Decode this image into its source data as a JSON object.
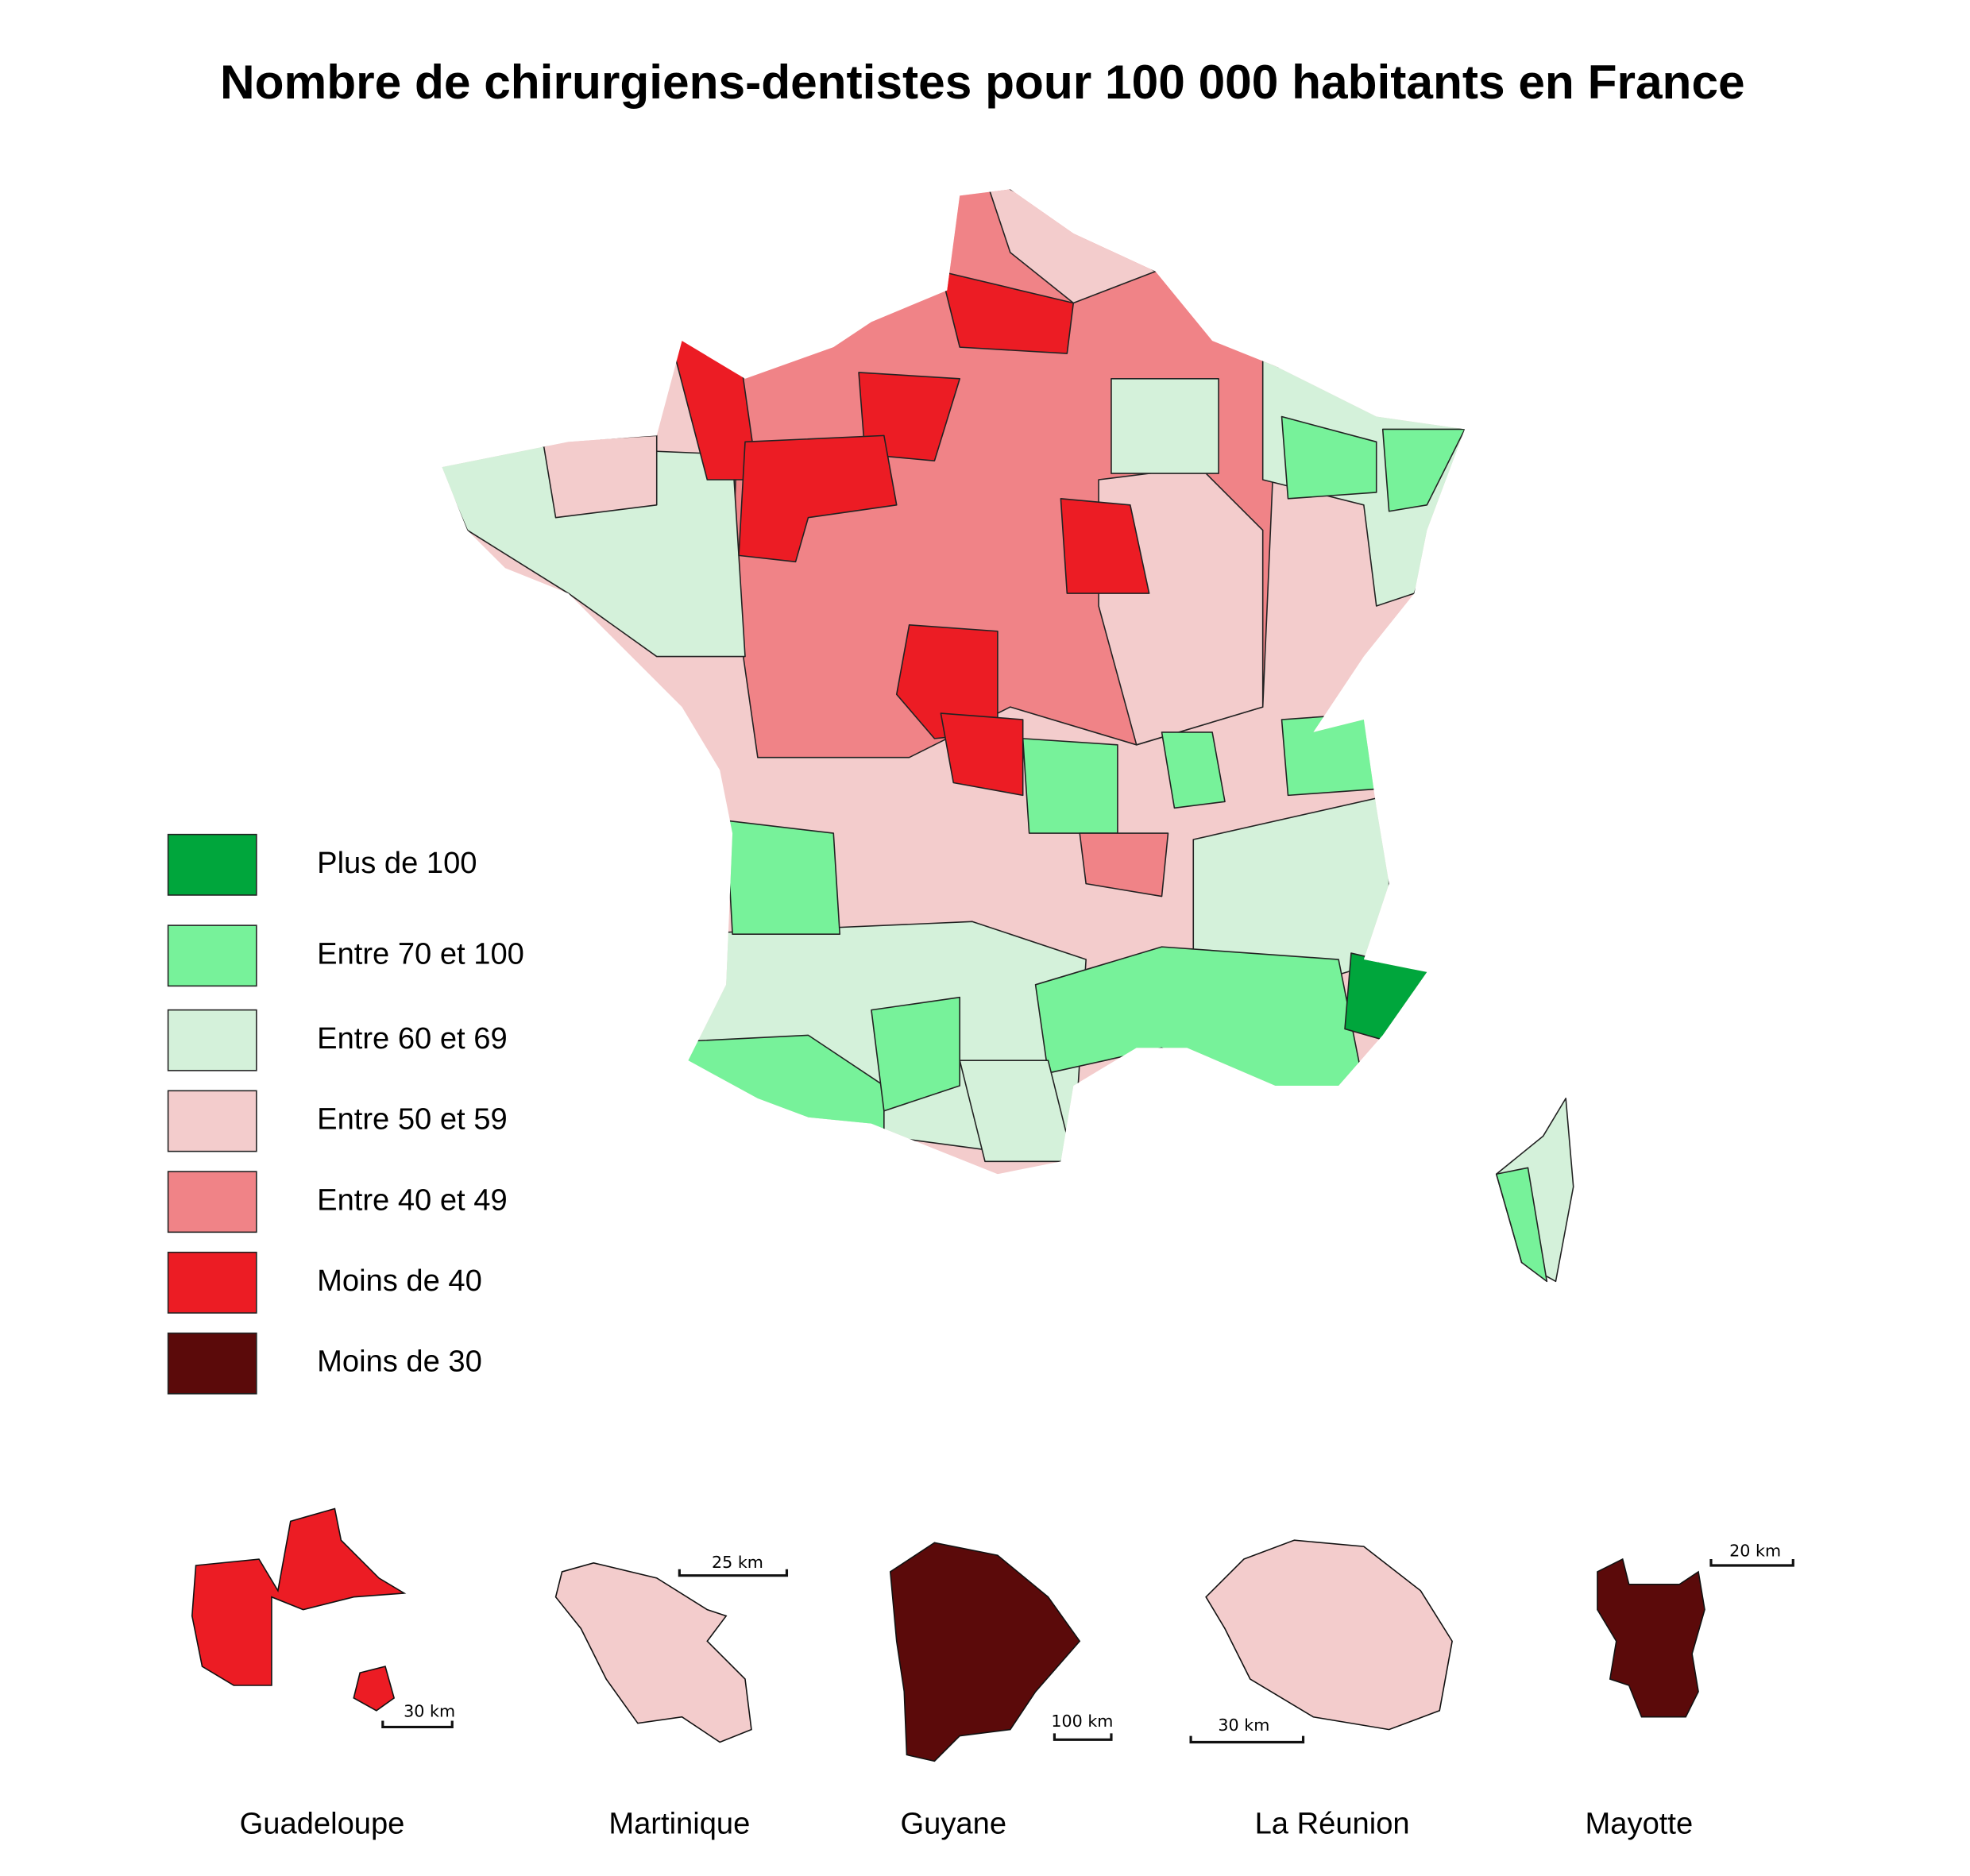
{
  "title": "Nombre de chirurgiens-dentistes pour 100 000 habitants en France",
  "legend": [
    {
      "label": "Plus de 100",
      "color": "#00a63c"
    },
    {
      "label": "Entre 70 et 100",
      "color": "#77f29a"
    },
    {
      "label": "Entre 60 et 69",
      "color": "#d4f1da"
    },
    {
      "label": "Entre 50 et 59",
      "color": "#f3cccc"
    },
    {
      "label": "Entre 40 et 49",
      "color": "#f08387"
    },
    {
      "label": "Moins de 40",
      "color": "#ec1c24"
    },
    {
      "label": "Moins de 30",
      "color": "#5b0a0a"
    }
  ],
  "territories": [
    {
      "name": "Guadeloupe",
      "color": "#ec1c24",
      "scale": "30 km"
    },
    {
      "name": "Martinique",
      "color": "#f3cccc",
      "scale": "25 km"
    },
    {
      "name": "Guyane",
      "color": "#5b0a0a",
      "scale": "100 km"
    },
    {
      "name": "La Réunion",
      "color": "#f3cccc",
      "scale": "30 km"
    },
    {
      "name": "Mayotte",
      "color": "#5b0a0a",
      "scale": "20 km"
    }
  ]
}
